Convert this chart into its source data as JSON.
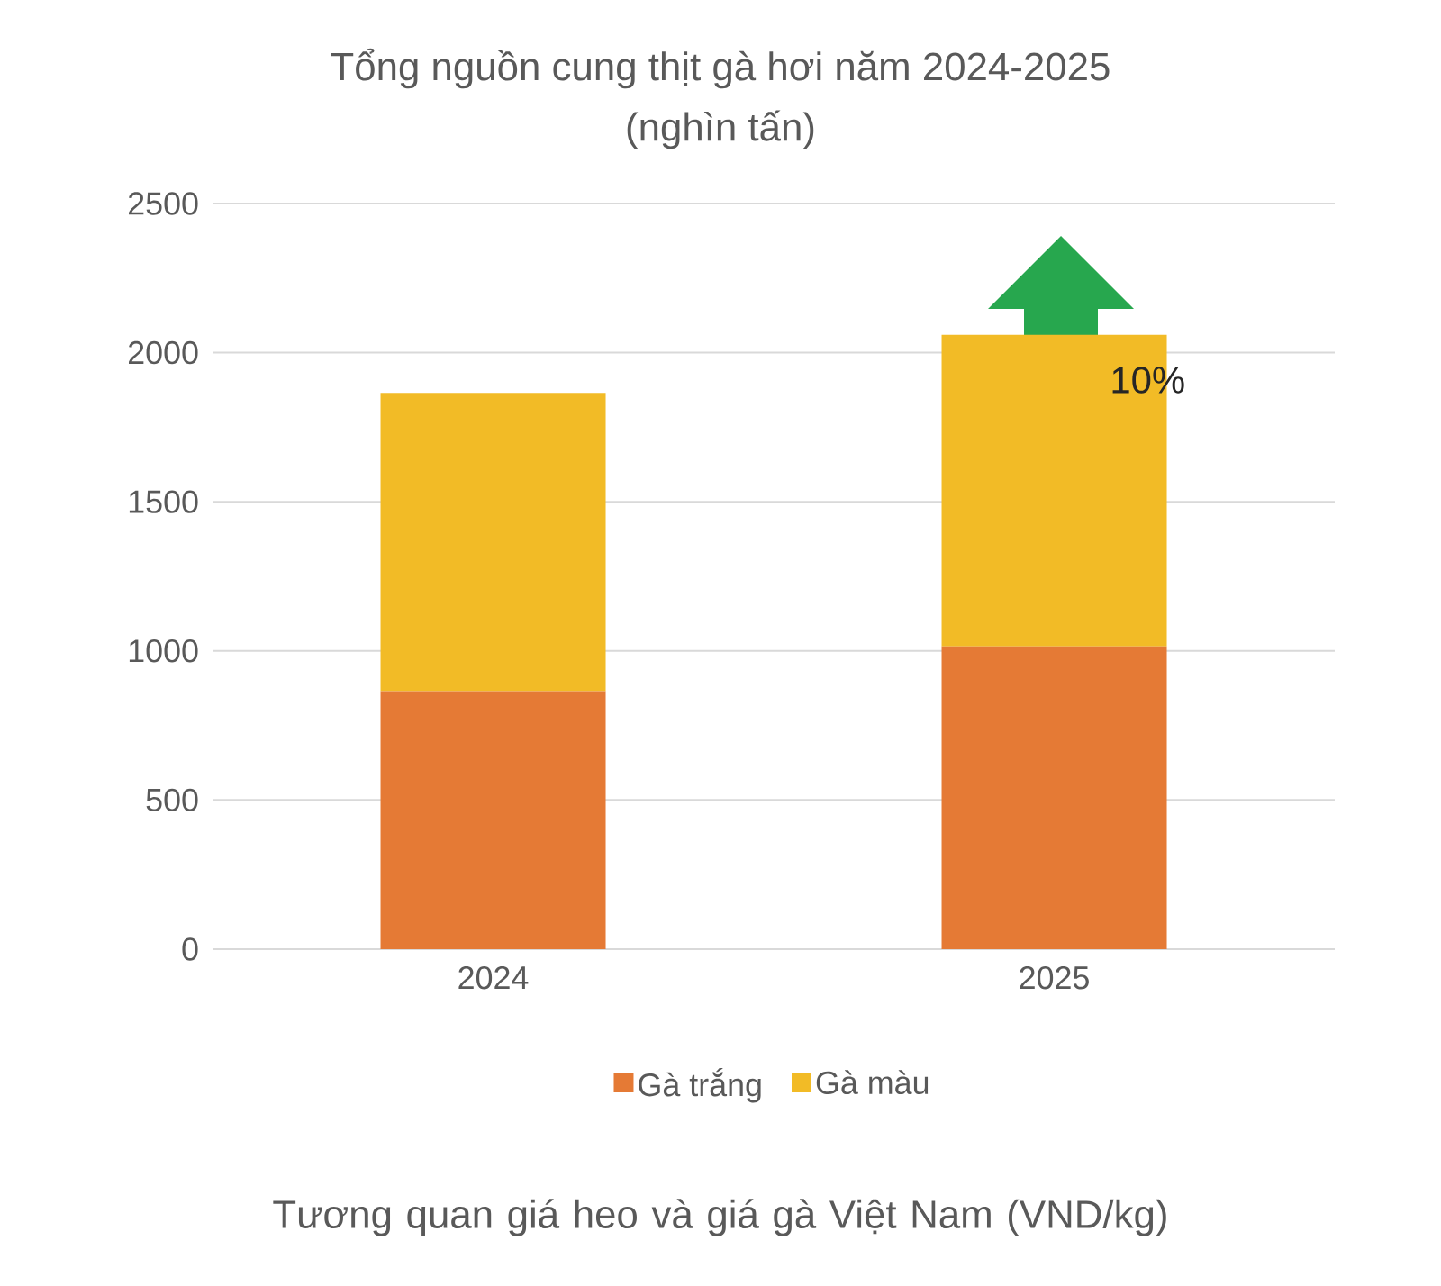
{
  "chart_data": {
    "type": "bar",
    "title": "Tổng nguồn cung thịt gà hơi năm 2024-2025",
    "subtitle": "(nghìn tấn)",
    "categories": [
      "2024",
      "2025"
    ],
    "series": [
      {
        "name": "Gà trắng",
        "color": "#e57a35",
        "values": [
          865,
          1015
        ]
      },
      {
        "name": "Gà màu",
        "color": "#f2bb26",
        "values": [
          1000,
          1045
        ]
      }
    ],
    "stacked": true,
    "ylim": [
      0,
      2500
    ],
    "yticks": [
      0,
      500,
      1000,
      1500,
      2000,
      2500
    ],
    "grid": "y",
    "legend": "bottom",
    "annotations": [
      "10%",
      "Tương quan giá heo và giá gà Việt Nam (VND/kg)"
    ]
  }
}
